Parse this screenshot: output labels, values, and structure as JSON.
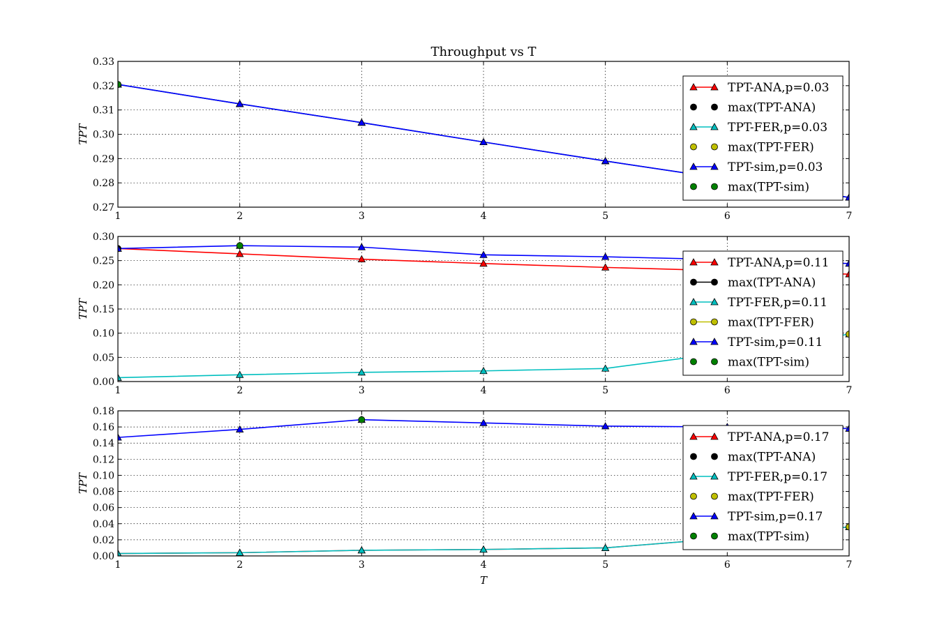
{
  "chart_data": [
    {
      "type": "line",
      "title": "Throughput vs T",
      "xlabel": "",
      "ylabel": "TPT",
      "x": [
        1,
        2,
        3,
        4,
        5,
        6,
        7
      ],
      "xlim": [
        1,
        7
      ],
      "ylim": [
        0.27,
        0.33
      ],
      "yticks": [
        "0.27",
        "0.28",
        "0.29",
        "0.30",
        "0.31",
        "0.32",
        "0.33"
      ],
      "xticks": [
        "1",
        "2",
        "3",
        "4",
        "5",
        "6",
        "7"
      ],
      "grid": true,
      "legend_position": "right",
      "series": [
        {
          "name": "TPT-ANA,p=0.03",
          "color": "#ff0000",
          "marker": "triangle",
          "line": true,
          "x": [
            1,
            2,
            3,
            4,
            5,
            6,
            7
          ],
          "values": [
            0.3205,
            0.3125,
            0.3048,
            0.2968,
            0.289,
            0.2815,
            0.274
          ]
        },
        {
          "name": "max(TPT-ANA)",
          "color": "#000000",
          "marker": "circle",
          "line": false,
          "x": [
            1
          ],
          "values": [
            0.3205
          ]
        },
        {
          "name": "TPT-FER,p=0.03",
          "color": "#00bfbf",
          "marker": "triangle",
          "line": true,
          "x": [
            1,
            2,
            3,
            4,
            5,
            6,
            7
          ],
          "values": [
            0.3205,
            0.3125,
            0.3048,
            0.2968,
            0.289,
            0.2815,
            0.274
          ]
        },
        {
          "name": "max(TPT-FER)",
          "color": "#bfbf00",
          "marker": "circle",
          "line": false,
          "x": [
            1
          ],
          "values": [
            0.3205
          ]
        },
        {
          "name": "TPT-sim,p=0.03",
          "color": "#0000ff",
          "marker": "triangle",
          "line": true,
          "x": [
            1,
            2,
            3,
            4,
            5,
            6,
            7
          ],
          "values": [
            0.3205,
            0.3125,
            0.3048,
            0.2968,
            0.289,
            0.2815,
            0.274
          ]
        },
        {
          "name": "max(TPT-sim)",
          "color": "#008000",
          "marker": "circle",
          "line": false,
          "x": [
            1
          ],
          "values": [
            0.3205
          ]
        }
      ]
    },
    {
      "type": "line",
      "title": "",
      "xlabel": "",
      "ylabel": "TPT",
      "x": [
        1,
        2,
        3,
        4,
        5,
        6,
        7
      ],
      "xlim": [
        1,
        7
      ],
      "ylim": [
        0.0,
        0.3
      ],
      "yticks": [
        "0.00",
        "0.05",
        "0.10",
        "0.15",
        "0.20",
        "0.25",
        "0.30"
      ],
      "xticks": [
        "1",
        "2",
        "3",
        "4",
        "5",
        "6",
        "7"
      ],
      "grid": true,
      "legend_position": "right",
      "series": [
        {
          "name": "TPT-ANA,p=0.11",
          "color": "#ff0000",
          "marker": "triangle",
          "line": true,
          "x": [
            1,
            2,
            3,
            4,
            5,
            6,
            7
          ],
          "values": [
            0.275,
            0.264,
            0.253,
            0.244,
            0.236,
            0.229,
            0.222
          ]
        },
        {
          "name": "max(TPT-ANA)",
          "color": "#000000",
          "marker": "circle",
          "line": true,
          "x": [
            1
          ],
          "values": [
            0.275
          ]
        },
        {
          "name": "TPT-FER,p=0.11",
          "color": "#00bfbf",
          "marker": "triangle",
          "line": true,
          "x": [
            1,
            2,
            3,
            4,
            5,
            6,
            7
          ],
          "values": [
            0.008,
            0.014,
            0.019,
            0.022,
            0.027,
            0.06,
            0.098
          ]
        },
        {
          "name": "max(TPT-FER)",
          "color": "#bfbf00",
          "marker": "circle",
          "line": true,
          "x": [
            7
          ],
          "values": [
            0.098
          ]
        },
        {
          "name": "TPT-sim,p=0.11",
          "color": "#0000ff",
          "marker": "triangle",
          "line": true,
          "x": [
            1,
            2,
            3,
            4,
            5,
            6,
            7
          ],
          "values": [
            0.275,
            0.281,
            0.278,
            0.262,
            0.258,
            0.252,
            0.244
          ]
        },
        {
          "name": "max(TPT-sim)",
          "color": "#008000",
          "marker": "circle",
          "line": false,
          "x": [
            2
          ],
          "values": [
            0.281
          ]
        }
      ]
    },
    {
      "type": "line",
      "title": "",
      "xlabel": "T",
      "ylabel": "TPT",
      "x": [
        1,
        2,
        3,
        4,
        5,
        6,
        7
      ],
      "xlim": [
        1,
        7
      ],
      "ylim": [
        0.0,
        0.18
      ],
      "yticks": [
        "0.00",
        "0.02",
        "0.04",
        "0.06",
        "0.08",
        "0.10",
        "0.12",
        "0.14",
        "0.16",
        "0.18"
      ],
      "xticks": [
        "1",
        "2",
        "3",
        "4",
        "5",
        "6",
        "7"
      ],
      "grid": true,
      "legend_position": "right",
      "series": [
        {
          "name": "TPT-ANA,p=0.17",
          "color": "#ff0000",
          "marker": "triangle",
          "line": true,
          "x": [
            1,
            2,
            3,
            4,
            5,
            6,
            7
          ],
          "values": [
            0.003,
            0.004,
            0.007,
            0.008,
            0.01,
            0.022,
            0.036
          ]
        },
        {
          "name": "max(TPT-ANA)",
          "color": "#000000",
          "marker": "circle",
          "line": false,
          "x": [
            7
          ],
          "values": [
            0.036
          ]
        },
        {
          "name": "TPT-FER,p=0.17",
          "color": "#00bfbf",
          "marker": "triangle",
          "line": true,
          "x": [
            1,
            2,
            3,
            4,
            5,
            6,
            7
          ],
          "values": [
            0.003,
            0.004,
            0.007,
            0.008,
            0.01,
            0.022,
            0.036
          ]
        },
        {
          "name": "max(TPT-FER)",
          "color": "#bfbf00",
          "marker": "circle",
          "line": false,
          "x": [
            7
          ],
          "values": [
            0.036
          ]
        },
        {
          "name": "TPT-sim,p=0.17",
          "color": "#0000ff",
          "marker": "triangle",
          "line": true,
          "x": [
            1,
            2,
            3,
            4,
            5,
            6,
            7
          ],
          "values": [
            0.147,
            0.157,
            0.169,
            0.165,
            0.161,
            0.16,
            0.158
          ]
        },
        {
          "name": "max(TPT-sim)",
          "color": "#008000",
          "marker": "circle",
          "line": false,
          "x": [
            3
          ],
          "values": [
            0.169
          ]
        }
      ]
    }
  ]
}
